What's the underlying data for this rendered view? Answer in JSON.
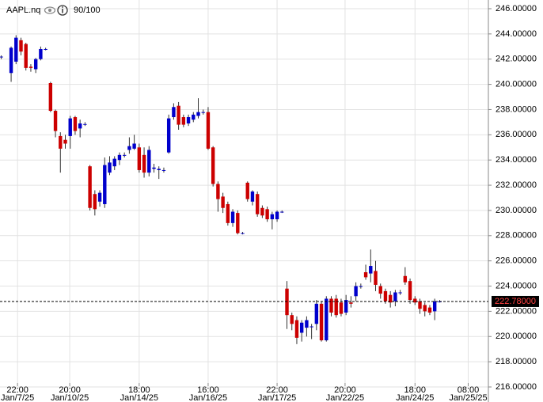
{
  "chart_data": {
    "type": "candlestick",
    "title": "AAPL.nq",
    "subtitle": "90/100",
    "x": [
      0,
      2,
      3,
      4,
      5,
      6,
      7,
      8,
      9,
      10,
      11,
      12,
      13,
      14,
      15,
      16,
      17,
      18,
      19,
      20,
      21,
      22,
      23,
      24,
      25,
      26,
      27,
      28,
      29,
      30,
      31,
      32,
      33,
      34,
      35,
      36,
      37,
      38,
      39,
      40,
      41,
      42,
      43,
      44,
      45,
      46,
      47,
      48,
      49,
      50,
      51,
      52,
      53,
      54,
      55,
      56,
      57,
      58,
      59,
      60,
      61,
      62,
      63,
      64,
      65,
      66,
      67,
      68,
      69,
      70,
      71,
      72,
      73,
      74,
      75,
      76,
      77,
      78,
      79,
      80,
      81,
      82,
      83,
      84,
      85,
      86,
      87,
      88,
      89
    ],
    "open": [
      242.2,
      240.9,
      241.8,
      243.5,
      243.2,
      241.4,
      241.2,
      242.0,
      242.75,
      240.1,
      237.9,
      235.9,
      235.6,
      235.9,
      237.4,
      236.5,
      236.85,
      233.5,
      231.3,
      230.7,
      230.5,
      233.0,
      233.5,
      234.0,
      234.4,
      234.8,
      234.9,
      235.0,
      234.4,
      233.0,
      233.3,
      233.2,
      233.2,
      234.6,
      237.4,
      238.3,
      237.4,
      236.9,
      237.2,
      237.5,
      237.8,
      237.8,
      235.0,
      232.1,
      231.1,
      230.5,
      229.0,
      229.8,
      228.2,
      232.2,
      230.7,
      231.3,
      230.2,
      230.1,
      229.3,
      229.3,
      229.9,
      223.8,
      221.7,
      221.3,
      220.3,
      220.7,
      220.8,
      221.0,
      222.6,
      219.7,
      223.0,
      223.0,
      222.7,
      221.9,
      222.7,
      223.2,
      224.0,
      225.1,
      225.0,
      225.2,
      224.0,
      223.6,
      223.3,
      222.8,
      223.5,
      224.8,
      224.4,
      223.0,
      222.8,
      222.5,
      222.3,
      222.0,
      222.78
    ],
    "high": [
      242.3,
      243.0,
      243.9,
      243.7,
      243.3,
      241.6,
      242.1,
      243.0,
      242.9,
      240.2,
      238.0,
      236.2,
      236.0,
      237.5,
      237.5,
      237.2,
      237.0,
      233.6,
      231.6,
      231.6,
      234.2,
      234.3,
      234.3,
      234.6,
      234.6,
      235.8,
      236.0,
      235.3,
      235.0,
      235.1,
      233.7,
      233.5,
      233.4,
      237.6,
      238.5,
      238.6,
      237.6,
      237.6,
      237.8,
      238.9,
      238.0,
      238.2,
      235.1,
      232.3,
      231.4,
      230.7,
      230.1,
      230.0,
      228.3,
      232.3,
      231.6,
      231.5,
      230.4,
      230.3,
      229.9,
      230.0,
      230.0,
      224.4,
      221.9,
      221.6,
      221.3,
      221.6,
      221.0,
      222.9,
      222.8,
      223.2,
      223.2,
      223.3,
      223.0,
      223.3,
      223.2,
      224.3,
      224.2,
      225.7,
      226.9,
      226.0,
      224.2,
      223.8,
      223.6,
      223.7,
      223.7,
      225.5,
      224.6,
      223.2,
      223.0,
      222.7,
      222.5,
      223.0,
      222.9
    ],
    "low": [
      242.0,
      240.2,
      241.6,
      242.3,
      241.1,
      241.0,
      240.9,
      241.9,
      242.7,
      237.8,
      235.8,
      233.0,
      234.9,
      234.9,
      236.0,
      235.8,
      236.7,
      230.0,
      229.6,
      230.3,
      230.2,
      232.8,
      233.2,
      233.6,
      234.2,
      234.5,
      234.8,
      233.0,
      232.6,
      232.7,
      233.0,
      232.5,
      233.0,
      234.5,
      237.2,
      236.4,
      236.6,
      236.7,
      237.0,
      237.3,
      237.6,
      234.8,
      231.9,
      229.9,
      229.8,
      228.8,
      228.7,
      228.1,
      228.1,
      230.7,
      230.4,
      229.5,
      229.4,
      229.1,
      228.5,
      229.1,
      229.8,
      220.6,
      220.5,
      219.4,
      219.6,
      220.0,
      219.8,
      220.5,
      219.6,
      219.6,
      221.6,
      221.5,
      221.6,
      221.7,
      222.3,
      222.8,
      223.8,
      224.5,
      224.3,
      223.6,
      223.0,
      222.6,
      222.3,
      222.4,
      223.3,
      224.1,
      222.6,
      222.5,
      221.8,
      221.6,
      221.7,
      221.3,
      222.7
    ],
    "close": [
      242.2,
      242.9,
      243.7,
      242.6,
      241.3,
      241.3,
      242.0,
      242.8,
      242.8,
      237.9,
      236.3,
      234.9,
      235.3,
      237.3,
      236.3,
      236.9,
      236.85,
      230.2,
      230.1,
      231.4,
      233.6,
      233.8,
      234.1,
      234.4,
      234.4,
      235.1,
      235.3,
      233.2,
      233.0,
      234.8,
      233.4,
      233.3,
      233.2,
      237.3,
      238.2,
      236.8,
      236.8,
      237.4,
      237.6,
      237.8,
      237.8,
      234.9,
      232.1,
      230.9,
      230.2,
      229.0,
      229.9,
      228.2,
      228.2,
      230.9,
      231.5,
      229.7,
      229.6,
      229.3,
      229.7,
      229.9,
      229.9,
      221.7,
      221.0,
      219.9,
      221.1,
      221.3,
      220.8,
      222.6,
      219.7,
      223.0,
      221.9,
      221.7,
      221.8,
      222.9,
      222.6,
      224.0,
      224.0,
      224.7,
      225.6,
      224.1,
      223.4,
      222.8,
      222.7,
      223.5,
      223.5,
      224.3,
      222.9,
      222.7,
      222.2,
      222.0,
      221.9,
      222.8,
      222.78
    ],
    "up_color": "#0000cc",
    "down_color": "#cc0000",
    "last_price": {
      "value": 222.78,
      "label": "222.78000"
    },
    "xlim": [
      -0.26,
      98.9
    ],
    "ylim": [
      216,
      246.69
    ],
    "xticks": [
      {
        "value": 3.3,
        "label": "22:00"
      },
      {
        "value": 13.9,
        "label": "20:00"
      },
      {
        "value": 28.0,
        "label": "18:00"
      },
      {
        "value": 42.0,
        "label": "16:00"
      },
      {
        "value": 56.0,
        "label": "22:00"
      },
      {
        "value": 69.8,
        "label": "20:00"
      },
      {
        "value": 84.0,
        "label": "18:00"
      },
      {
        "value": 94.8,
        "label": "08:00"
      }
    ],
    "xtick_dates": [
      "Jan/7/25",
      "Jan/10/25",
      "Jan/14/25",
      "Jan/16/25",
      "Jan/17/25",
      "Jan/22/25",
      "Jan/24/25",
      "Jan/25/25"
    ],
    "yticks": [
      {
        "value": 216,
        "label": "216.00000"
      },
      {
        "value": 218,
        "label": "218.00000"
      },
      {
        "value": 220,
        "label": "220.00000"
      },
      {
        "value": 222,
        "label": "222.00000"
      },
      {
        "value": 224,
        "label": "224.00000"
      },
      {
        "value": 226,
        "label": "226.00000"
      },
      {
        "value": 228,
        "label": "228.00000"
      },
      {
        "value": 230,
        "label": "230.00000"
      },
      {
        "value": 232,
        "label": "232.00000"
      },
      {
        "value": 234,
        "label": "234.00000"
      },
      {
        "value": 236,
        "label": "236.00000"
      },
      {
        "value": 238,
        "label": "238.00000"
      },
      {
        "value": 240,
        "label": "240.00000"
      },
      {
        "value": 242,
        "label": "242.00000"
      },
      {
        "value": 244,
        "label": "244.00000"
      },
      {
        "value": 246,
        "label": "246.00000"
      }
    ],
    "grid": true
  }
}
